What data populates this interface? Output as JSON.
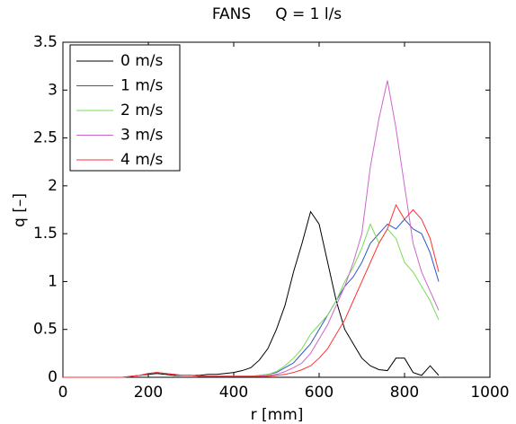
{
  "chart_data": {
    "type": "line",
    "title": "FANS     Q = 1 l/s",
    "xlabel": "r [mm]",
    "ylabel": "q [–]",
    "x": [
      0,
      20,
      40,
      60,
      80,
      100,
      120,
      140,
      160,
      180,
      200,
      220,
      240,
      260,
      280,
      300,
      320,
      340,
      360,
      380,
      400,
      420,
      440,
      460,
      480,
      500,
      520,
      540,
      560,
      580,
      600,
      620,
      640,
      660,
      680,
      700,
      720,
      740,
      760,
      780,
      800,
      820,
      840,
      860,
      880
    ],
    "series": [
      {
        "name": "0 m/s",
        "color": "#000000",
        "values": [
          0,
          0,
          0,
          0,
          0,
          0,
          0,
          0,
          0.01,
          0.02,
          0.03,
          0.04,
          0.03,
          0.02,
          0.02,
          0.02,
          0.02,
          0.03,
          0.03,
          0.04,
          0.05,
          0.07,
          0.1,
          0.18,
          0.3,
          0.5,
          0.75,
          1.1,
          1.4,
          1.73,
          1.6,
          1.2,
          0.8,
          0.5,
          0.35,
          0.2,
          0.12,
          0.08,
          0.07,
          0.2,
          0.2,
          0.05,
          0.02,
          0.12,
          0.02
        ]
      },
      {
        "name": "1 m/s",
        "color": "#3355cc",
        "values": [
          0,
          0,
          0,
          0,
          0,
          0,
          0,
          0,
          0.01,
          0.02,
          0.04,
          0.05,
          0.04,
          0.03,
          0.02,
          0.02,
          0.01,
          0.01,
          0.01,
          0.01,
          0.01,
          0.01,
          0.01,
          0.02,
          0.03,
          0.05,
          0.1,
          0.15,
          0.25,
          0.35,
          0.5,
          0.65,
          0.8,
          0.95,
          1.05,
          1.2,
          1.4,
          1.5,
          1.6,
          1.55,
          1.65,
          1.55,
          1.5,
          1.3,
          1.0
        ]
      },
      {
        "name": "2 m/s",
        "color": "#77dd55",
        "values": [
          0,
          0,
          0,
          0,
          0,
          0,
          0,
          0,
          0.01,
          0.02,
          0.04,
          0.05,
          0.04,
          0.03,
          0.02,
          0.02,
          0.01,
          0.01,
          0.01,
          0.01,
          0.01,
          0.01,
          0.01,
          0.02,
          0.03,
          0.06,
          0.12,
          0.2,
          0.3,
          0.45,
          0.55,
          0.65,
          0.8,
          1.0,
          1.15,
          1.35,
          1.6,
          1.4,
          1.55,
          1.45,
          1.2,
          1.1,
          0.95,
          0.8,
          0.6
        ]
      },
      {
        "name": "3 m/s",
        "color": "#cc66cc",
        "values": [
          0,
          0,
          0,
          0,
          0,
          0,
          0,
          0,
          0.01,
          0.02,
          0.04,
          0.05,
          0.04,
          0.03,
          0.02,
          0.02,
          0.01,
          0.01,
          0.01,
          0.01,
          0.01,
          0.01,
          0.01,
          0.01,
          0.02,
          0.03,
          0.06,
          0.1,
          0.15,
          0.25,
          0.4,
          0.55,
          0.75,
          0.95,
          1.2,
          1.5,
          2.2,
          2.7,
          3.1,
          2.6,
          2.0,
          1.4,
          1.1,
          0.9,
          0.7
        ]
      },
      {
        "name": "4 m/s",
        "color": "#ff3333",
        "values": [
          0,
          0,
          0,
          0,
          0,
          0,
          0,
          0,
          0.01,
          0.02,
          0.04,
          0.05,
          0.04,
          0.03,
          0.02,
          0.02,
          0.01,
          0.01,
          0.01,
          0.01,
          0.01,
          0.01,
          0.01,
          0.01,
          0.01,
          0.02,
          0.03,
          0.05,
          0.08,
          0.12,
          0.2,
          0.3,
          0.45,
          0.6,
          0.8,
          1.0,
          1.2,
          1.4,
          1.55,
          1.8,
          1.65,
          1.75,
          1.65,
          1.45,
          1.1
        ]
      }
    ],
    "xlim": [
      0,
      1000
    ],
    "xticks": [
      0,
      200,
      400,
      600,
      800,
      1000
    ],
    "ylim": [
      0,
      3.5
    ],
    "yticks": [
      0,
      0.5,
      1,
      1.5,
      2,
      2.5,
      3,
      3.5
    ],
    "legend": "upper left",
    "grid": false
  }
}
